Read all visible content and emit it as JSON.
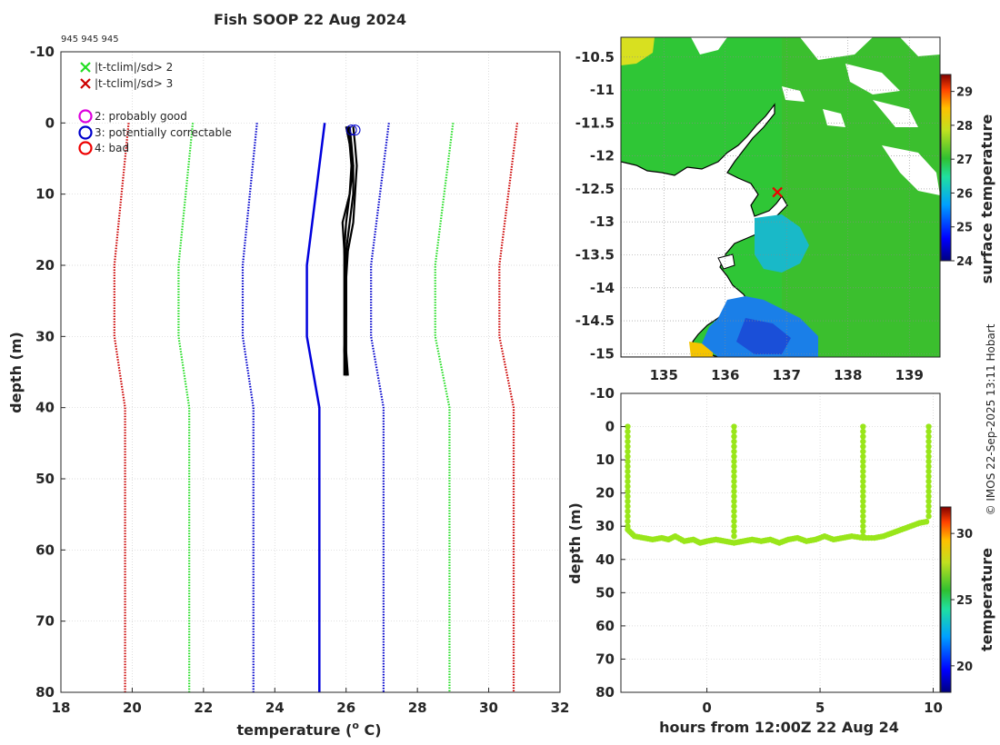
{
  "figure_title": "Fish SOOP 22 Aug 2024",
  "ids_label": "945 945 945",
  "credit": "© IMOS 22-Sep-2025 13:11 Hobart",
  "colors": {
    "clim2": "#22dd22",
    "clim3": "#cc0000",
    "qc2": "#dd00dd",
    "qc3": "#0000cc",
    "qc4": "#ee0000",
    "mean": "#0000dd",
    "profile": "#000000",
    "timeseries": "#99e61a",
    "coast": "#000000"
  },
  "chart_data": [
    {
      "id": "profile",
      "type": "line",
      "xlabel": "temperature (o C)",
      "xlabel_prefix": "temperature (",
      "xlabel_sup": "o",
      "xlabel_suffix": " C)",
      "ylabel": "depth (m)",
      "xlim": [
        18,
        32
      ],
      "ylim": [
        80,
        -10
      ],
      "xticks": [
        18,
        20,
        22,
        24,
        26,
        28,
        30,
        32
      ],
      "yticks": [
        -10,
        0,
        10,
        20,
        30,
        40,
        50,
        60,
        70,
        80
      ],
      "legend": [
        {
          "marker": "x",
          "color": "#22dd22",
          "label": "|t-tclim|/sd> 2"
        },
        {
          "marker": "x",
          "color": "#cc0000",
          "label": "|t-tclim|/sd> 3"
        },
        {
          "marker": "o",
          "color": "#dd00dd",
          "label": "2: probably good"
        },
        {
          "marker": "o",
          "color": "#0000cc",
          "label": "3: potentially correctable"
        },
        {
          "marker": "o",
          "color": "#ee0000",
          "label": "4: bad"
        }
      ],
      "climatology_depths": [
        0,
        20,
        30,
        40,
        80
      ],
      "series": [
        {
          "name": "clim -3sd",
          "style": "dotted",
          "color": "#cc0000",
          "values": [
            19.9,
            19.5,
            19.5,
            19.8,
            19.8
          ]
        },
        {
          "name": "clim -2sd",
          "style": "dotted",
          "color": "#22dd22",
          "values": [
            21.7,
            21.3,
            21.3,
            21.6,
            21.6
          ]
        },
        {
          "name": "clim -1sd",
          "style": "dotted",
          "color": "#0000cc",
          "values": [
            23.5,
            23.1,
            23.1,
            23.4,
            23.4
          ]
        },
        {
          "name": "clim mean",
          "style": "solid",
          "color": "#0000dd",
          "values": [
            25.4,
            24.9,
            24.9,
            25.25,
            25.25
          ]
        },
        {
          "name": "clim +1sd",
          "style": "dotted",
          "color": "#0000cc",
          "values": [
            27.2,
            26.7,
            26.7,
            27.05,
            27.05
          ]
        },
        {
          "name": "clim +2sd",
          "style": "dotted",
          "color": "#22dd22",
          "values": [
            29.0,
            28.5,
            28.5,
            28.9,
            28.9
          ]
        },
        {
          "name": "clim +3sd",
          "style": "dotted",
          "color": "#cc0000",
          "values": [
            30.8,
            30.3,
            30.3,
            30.7,
            30.7
          ]
        }
      ],
      "profiles": [
        {
          "depth": [
            0.5,
            3,
            6,
            10,
            14,
            18,
            22,
            27,
            32,
            35.5
          ],
          "temp": [
            26.1,
            26.15,
            26.2,
            26.2,
            26.1,
            26.0,
            26.0,
            26.0,
            26.0,
            26.0
          ]
        },
        {
          "depth": [
            0.5,
            3,
            6,
            10,
            14,
            18,
            22,
            27,
            32,
            35.5
          ],
          "temp": [
            26.0,
            26.1,
            26.2,
            26.1,
            26.0,
            25.95,
            25.95,
            25.95,
            25.95,
            25.95
          ]
        },
        {
          "depth": [
            0.5,
            3,
            6,
            10,
            14,
            18,
            22,
            27,
            32,
            35.5
          ],
          "temp": [
            26.2,
            26.25,
            26.3,
            26.25,
            26.2,
            26.05,
            26.0,
            26.0,
            26.0,
            26.05
          ]
        },
        {
          "depth": [
            0.5,
            3,
            6,
            10,
            14,
            18,
            22,
            27,
            32,
            35.5
          ],
          "temp": [
            26.05,
            26.1,
            26.15,
            26.1,
            25.9,
            25.95,
            26.0,
            26.0,
            25.95,
            26.0
          ]
        }
      ],
      "qc_flags": [
        {
          "temp": 26.15,
          "depth": 1,
          "color": "#0000cc"
        },
        {
          "temp": 26.25,
          "depth": 1,
          "color": "#0000cc"
        }
      ]
    },
    {
      "id": "sst_map",
      "type": "heatmap",
      "colorbar_label": "surface temperature",
      "xlim": [
        134.3,
        139.5
      ],
      "ylim": [
        -15.05,
        -10.2
      ],
      "xticks": [
        135,
        136,
        137,
        138,
        139
      ],
      "yticks": [
        -10.5,
        -11,
        -11.5,
        -12,
        -12.5,
        -13,
        -13.5,
        -14,
        -14.5,
        -15
      ],
      "cbar_range": [
        24,
        29.5
      ],
      "cbar_ticks": [
        24,
        25,
        26,
        27,
        28,
        29
      ],
      "station": {
        "lon": 136.85,
        "lat": -12.55,
        "color": "#ee0000"
      }
    },
    {
      "id": "timeseries",
      "type": "scatter",
      "xlabel": "hours from 12:00Z 22 Aug 24",
      "ylabel": "depth (m)",
      "colorbar_label": "temperature",
      "xlim": [
        -3.8,
        10.3
      ],
      "ylim": [
        80,
        -10
      ],
      "xticks": [
        0,
        5,
        10
      ],
      "yticks": [
        -10,
        0,
        10,
        20,
        30,
        40,
        50,
        60,
        70,
        80
      ],
      "cbar_range": [
        18,
        32
      ],
      "cbar_ticks": [
        20,
        25,
        30
      ],
      "casts": [
        -3.5,
        1.2,
        6.9,
        9.8
      ],
      "bottom": {
        "x": [
          -3.5,
          -3.2,
          -2.8,
          -2.4,
          -2.0,
          -1.7,
          -1.4,
          -1.0,
          -0.6,
          -0.3,
          0.0,
          0.4,
          0.8,
          1.2,
          1.6,
          2.0,
          2.4,
          2.8,
          3.2,
          3.6,
          4.0,
          4.4,
          4.8,
          5.2,
          5.6,
          6.0,
          6.4,
          6.9,
          7.4,
          7.8,
          8.2,
          8.6,
          9.0,
          9.4,
          9.8
        ],
        "y": [
          31,
          33,
          33.5,
          34,
          33.5,
          34,
          33,
          34.5,
          34,
          35,
          34.5,
          34,
          34.5,
          35,
          34.5,
          34,
          34.5,
          34,
          35,
          34,
          33.5,
          34.5,
          34,
          33,
          34,
          33.5,
          33,
          33.5,
          33.5,
          33,
          32,
          31,
          30,
          29,
          28.5
        ]
      }
    }
  ]
}
